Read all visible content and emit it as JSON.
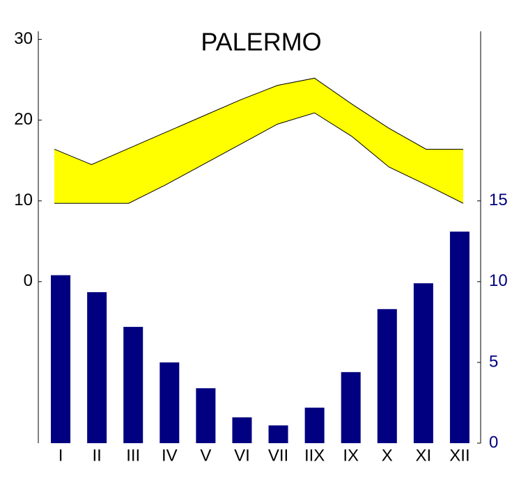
{
  "chart_data": {
    "type": "bar",
    "title": "PALERMO",
    "categories": [
      "I",
      "II",
      "III",
      "IV",
      "V",
      "VI",
      "VII",
      "IIX",
      "IX",
      "X",
      "XI",
      "XII"
    ],
    "series": [
      {
        "type": "band-upper",
        "color": "#ffff00",
        "values": [
          16.4,
          14.5,
          16.5,
          18.5,
          20.5,
          22.5,
          24.3,
          25.2,
          22,
          19,
          16.4,
          16.4
        ]
      },
      {
        "type": "band-lower",
        "color": "#ffff00",
        "values": [
          9.7,
          9.7,
          9.7,
          12,
          14.5,
          17,
          19.5,
          20.9,
          18,
          14.2,
          12,
          9.7
        ]
      },
      {
        "type": "bar",
        "axis": "y2",
        "color": "#000080",
        "values": [
          10.4,
          9.35,
          7.2,
          5.0,
          3.4,
          1.6,
          1.1,
          2.2,
          4.4,
          8.3,
          9.9,
          13.1
        ]
      }
    ],
    "ylim": [
      -20,
      31
    ],
    "yticks": [
      0,
      10,
      20,
      30
    ],
    "y2lim": [
      0,
      25.5
    ],
    "y2ticks": [
      0,
      5,
      10,
      15
    ],
    "y2color": "#000080"
  }
}
